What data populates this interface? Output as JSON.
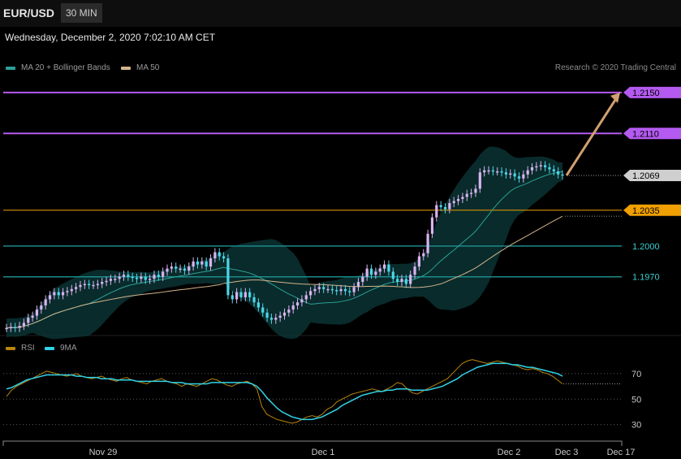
{
  "header": {
    "symbol": "EUR/USD",
    "interval": "30 MIN"
  },
  "datetime": "Wednesday, December 2, 2020 7:02:10 AM CET",
  "legend": {
    "ma20": "MA 20 + Bollinger Bands",
    "ma50": "MA 50",
    "rsi": "RSI",
    "rsi_ma": "9MA"
  },
  "copyright": "Research © 2020 Trading Central",
  "colors": {
    "purple": "#b45af0",
    "orange": "#f0a000",
    "teal": "#1d8a8a",
    "ma20": "#2aa198",
    "ma50": "#d2b48c",
    "candle_up": "#d9b3f0",
    "candle_down": "#4dd6e8",
    "rsi": "#b8860b",
    "rsi_ma": "#31d3e6",
    "arrow": "#d2a070"
  },
  "chart_data": [
    {
      "type": "candlestick",
      "title": "EUR/USD 30 MIN",
      "x_labels": [
        "Nov 29",
        "Dec 1",
        "Dec 2",
        "Dec 3",
        "Dec 17"
      ],
      "ylim": [
        1.1915,
        1.2165
      ],
      "levels": [
        {
          "value": 1.215,
          "label": "1.2150",
          "kind": "target"
        },
        {
          "value": 1.211,
          "label": "1.2110",
          "kind": "target"
        },
        {
          "value": 1.2069,
          "label": "1.2069",
          "kind": "last"
        },
        {
          "value": 1.2035,
          "label": "1.2035",
          "kind": "pivot"
        },
        {
          "value": 1.2,
          "label": "1.2000",
          "kind": "support"
        },
        {
          "value": 1.197,
          "label": "1.1970",
          "kind": "support"
        }
      ],
      "close_series": [
        1.192,
        1.1921,
        1.192,
        1.1922,
        1.1925,
        1.193,
        1.1932,
        1.1938,
        1.1942,
        1.1948,
        1.1952,
        1.1955,
        1.1952,
        1.1955,
        1.1956,
        1.1958,
        1.196,
        1.1962,
        1.1963,
        1.1962,
        1.1962,
        1.1963,
        1.1965,
        1.1966,
        1.1968,
        1.1968,
        1.197,
        1.1972,
        1.197,
        1.1969,
        1.1968,
        1.197,
        1.1967,
        1.1968,
        1.1972,
        1.197,
        1.1975,
        1.1978,
        1.198,
        1.1978,
        1.1978,
        1.1976,
        1.198,
        1.1985,
        1.1982,
        1.1985,
        1.198,
        1.1988,
        1.1994,
        1.199,
        1.1988,
        1.1952,
        1.1948,
        1.1955,
        1.195,
        1.1955,
        1.195,
        1.1945,
        1.194,
        1.1935,
        1.193,
        1.1928,
        1.193,
        1.1932,
        1.1935,
        1.1938,
        1.1942,
        1.1945,
        1.1948,
        1.1952,
        1.1956,
        1.1958,
        1.196,
        1.1958,
        1.1958,
        1.1957,
        1.1956,
        1.1958,
        1.1956,
        1.1955,
        1.196,
        1.1965,
        1.197,
        1.1978,
        1.1972,
        1.1975,
        1.1978,
        1.1982,
        1.1975,
        1.1968,
        1.1965,
        1.1968,
        1.1963,
        1.1972,
        1.198,
        1.199,
        1.1993,
        1.2012,
        1.2028,
        1.204,
        1.2038,
        1.2036,
        1.2042,
        1.2044,
        1.2046,
        1.2048,
        1.2051,
        1.2052,
        1.2056,
        1.2072,
        1.2074,
        1.2074,
        1.2073,
        1.2073,
        1.2072,
        1.207,
        1.2071,
        1.2068,
        1.2066,
        1.207,
        1.2074,
        1.2077,
        1.2078,
        1.2079,
        1.2077,
        1.2075,
        1.2073,
        1.207,
        1.2069
      ],
      "ma20": {
        "name": "MA 20 + Bollinger Bands"
      },
      "ma50": {
        "name": "MA 50"
      },
      "forecast_arrow": {
        "from": 1.2069,
        "to": 1.215
      }
    },
    {
      "type": "line",
      "title": "RSI",
      "ylim": [
        24,
        84
      ],
      "y_ticks": [
        70,
        50,
        30
      ],
      "series": [
        {
          "name": "RSI",
          "values": [
            52,
            57,
            60,
            62,
            64,
            66,
            68,
            70,
            72,
            71,
            70,
            69,
            68,
            69,
            70,
            68,
            67,
            66,
            67,
            68,
            66,
            65,
            64,
            66,
            67,
            65,
            64,
            63,
            62,
            64,
            65,
            66,
            64,
            63,
            62,
            60,
            62,
            61,
            60,
            62,
            64,
            66,
            65,
            63,
            61,
            60,
            62,
            63,
            64,
            62,
            58,
            44,
            38,
            36,
            34,
            33,
            32,
            31,
            32,
            34,
            36,
            37,
            36,
            38,
            42,
            44,
            48,
            50,
            52,
            54,
            55,
            56,
            57,
            58,
            57,
            56,
            58,
            60,
            63,
            62,
            58,
            55,
            54,
            56,
            58,
            60,
            62,
            64,
            66,
            70,
            74,
            78,
            80,
            81,
            80,
            79,
            78,
            79,
            80,
            79,
            78,
            77,
            76,
            74,
            73,
            74,
            73,
            71,
            70,
            68,
            65,
            62
          ]
        },
        {
          "name": "9MA",
          "values": [
            58,
            59,
            61,
            63,
            65,
            66,
            67,
            68,
            69,
            69,
            69,
            69,
            69,
            69,
            68,
            68,
            67,
            67,
            67,
            66,
            66,
            66,
            65,
            65,
            65,
            65,
            64,
            64,
            64,
            64,
            64,
            64,
            64,
            63,
            63,
            63,
            62,
            62,
            62,
            62,
            62,
            63,
            63,
            63,
            63,
            63,
            63,
            63,
            63,
            62,
            60,
            56,
            51,
            47,
            43,
            40,
            38,
            36,
            35,
            34,
            34,
            34,
            35,
            36,
            38,
            40,
            42,
            45,
            47,
            49,
            51,
            53,
            54,
            55,
            56,
            56,
            57,
            57,
            58,
            58,
            58,
            57,
            57,
            57,
            57,
            58,
            59,
            60,
            62,
            64,
            66,
            69,
            71,
            73,
            75,
            76,
            77,
            78,
            78,
            78,
            78,
            77,
            77,
            76,
            75,
            75,
            74,
            73,
            72,
            71,
            70,
            68
          ]
        }
      ]
    }
  ]
}
